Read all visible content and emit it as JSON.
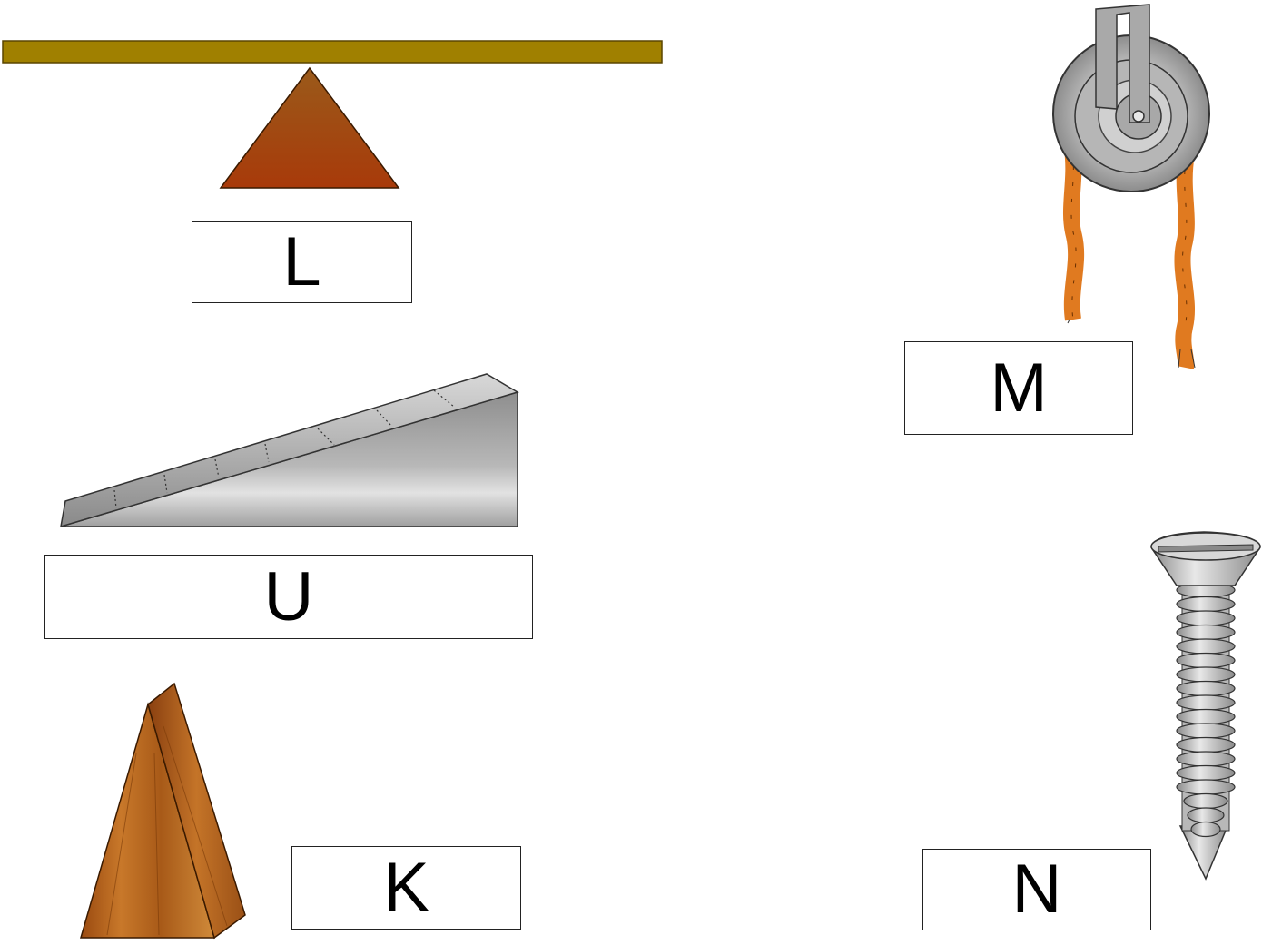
{
  "machines": [
    {
      "id": "lever",
      "label": "L",
      "icon": "lever-icon"
    },
    {
      "id": "inclined-plane",
      "label": "U",
      "icon": "inclined-plane-icon"
    },
    {
      "id": "wedge",
      "label": "K",
      "icon": "wedge-icon"
    },
    {
      "id": "pulley",
      "label": "M",
      "icon": "pulley-icon"
    },
    {
      "id": "screw",
      "label": "N",
      "icon": "screw-icon"
    }
  ],
  "colors": {
    "lever_bar": "#a08000",
    "fulcrum": "#b0521a",
    "wood": "#b5621c",
    "metal": "#a8a8a8",
    "rope": "#e07a20"
  }
}
